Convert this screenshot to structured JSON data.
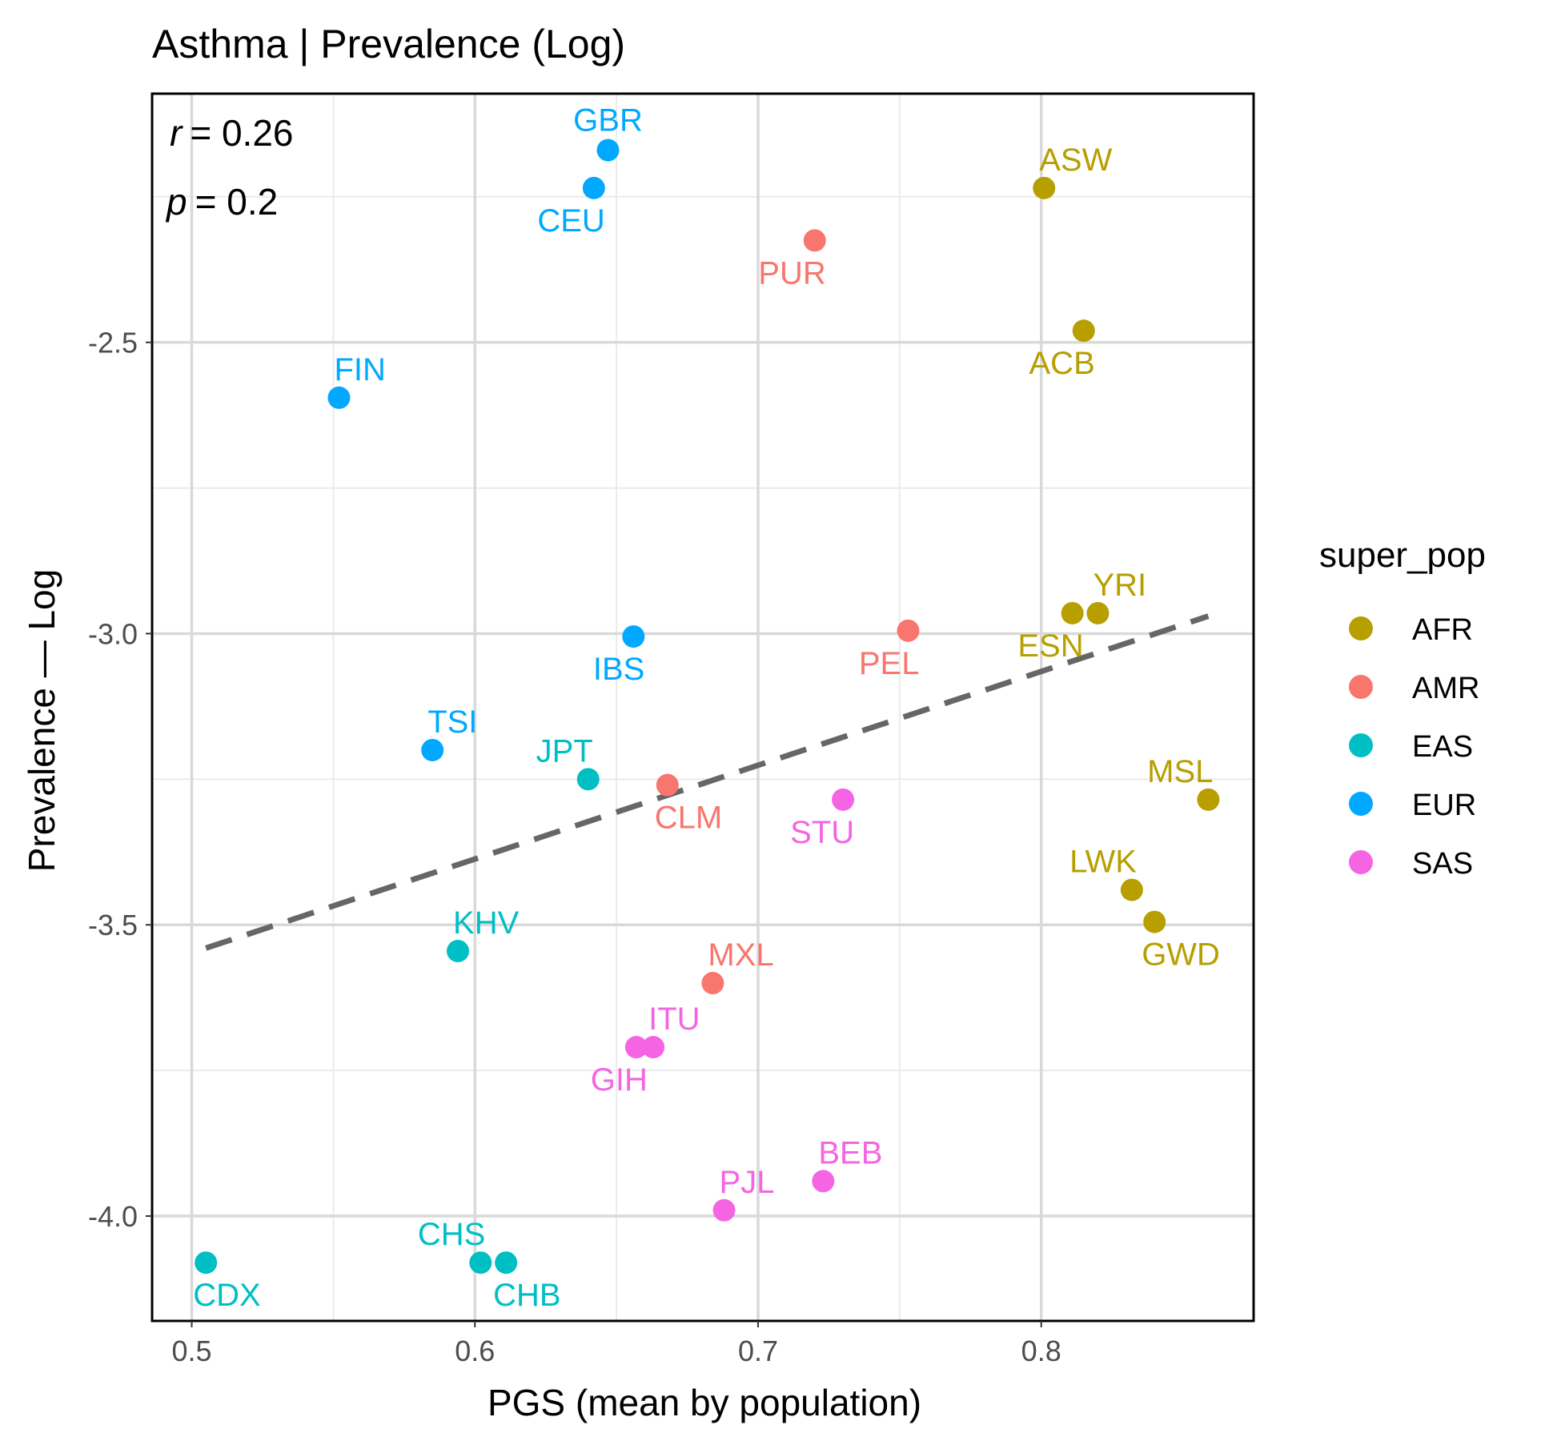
{
  "chart_data": {
    "type": "scatter",
    "title": "Asthma | Prevalence (Log)",
    "xlabel": "PGS (mean by population)",
    "ylabel": "Prevalence — Log",
    "xlim": [
      0.486,
      0.875
    ],
    "ylim": [
      -4.18,
      -2.073
    ],
    "x_ticks": [
      0.5,
      0.6,
      0.7,
      0.8
    ],
    "x_tick_labels": [
      "0.5",
      "0.6",
      "0.7",
      "0.8"
    ],
    "y_ticks": [
      -4.0,
      -3.5,
      -3.0,
      -2.5
    ],
    "y_tick_labels": [
      "-4.0",
      "-3.5",
      "-3.0",
      "-2.5"
    ],
    "grid": true,
    "annotation": {
      "r_symbol": "r",
      "r_value": "= 0.26",
      "p_symbol": "p",
      "p_value": "= 0.2"
    },
    "trend_line": {
      "style": "dashed",
      "color": "#666666",
      "x": [
        0.505,
        0.859
      ],
      "y": [
        -3.54,
        -2.97
      ]
    },
    "legend": {
      "title": "super_pop",
      "placement": "right",
      "entries": [
        {
          "name": "AFR",
          "color": "#B79F00"
        },
        {
          "name": "AMR",
          "color": "#F8766D"
        },
        {
          "name": "EAS",
          "color": "#00BFC4"
        },
        {
          "name": "EUR",
          "color": "#00A9FF"
        },
        {
          "name": "SAS",
          "color": "#F564E3"
        }
      ]
    },
    "points": [
      {
        "label": "GBR",
        "x": 0.647,
        "y": -2.17,
        "group": "EUR",
        "label_pos": "above"
      },
      {
        "label": "CEU",
        "x": 0.642,
        "y": -2.235,
        "group": "EUR",
        "label_pos": "below-left"
      },
      {
        "label": "FIN",
        "x": 0.552,
        "y": -2.595,
        "group": "EUR",
        "label_pos": "above-right"
      },
      {
        "label": "IBS",
        "x": 0.656,
        "y": -3.005,
        "group": "EUR",
        "label_pos": "below-left"
      },
      {
        "label": "TSI",
        "x": 0.585,
        "y": -3.2,
        "group": "EUR",
        "label_pos": "above-right"
      },
      {
        "label": "PUR",
        "x": 0.72,
        "y": -2.325,
        "group": "AMR",
        "label_pos": "below-left"
      },
      {
        "label": "PEL",
        "x": 0.753,
        "y": -2.995,
        "group": "AMR",
        "label_pos": "below-left"
      },
      {
        "label": "CLM",
        "x": 0.668,
        "y": -3.26,
        "group": "AMR",
        "label_pos": "below-right"
      },
      {
        "label": "MXL",
        "x": 0.684,
        "y": -3.6,
        "group": "AMR",
        "label_pos": "above-right"
      },
      {
        "label": "ASW",
        "x": 0.801,
        "y": -2.235,
        "group": "AFR",
        "label_pos": "above-right"
      },
      {
        "label": "ACB",
        "x": 0.815,
        "y": -2.48,
        "group": "AFR",
        "label_pos": "below-left"
      },
      {
        "label": "YRI",
        "x": 0.82,
        "y": -2.965,
        "group": "AFR",
        "label_pos": "above-right"
      },
      {
        "label": "ESN",
        "x": 0.811,
        "y": -2.965,
        "group": "AFR",
        "label_pos": "below-left"
      },
      {
        "label": "MSL",
        "x": 0.859,
        "y": -3.285,
        "group": "AFR",
        "label_pos": "above-left"
      },
      {
        "label": "LWK",
        "x": 0.832,
        "y": -3.44,
        "group": "AFR",
        "label_pos": "above-left"
      },
      {
        "label": "GWD",
        "x": 0.84,
        "y": -3.495,
        "group": "AFR",
        "label_pos": "below-right"
      },
      {
        "label": "JPT",
        "x": 0.64,
        "y": -3.25,
        "group": "EAS",
        "label_pos": "above-left"
      },
      {
        "label": "KHV",
        "x": 0.594,
        "y": -3.545,
        "group": "EAS",
        "label_pos": "above-right"
      },
      {
        "label": "CHS",
        "x": 0.602,
        "y": -4.08,
        "group": "EAS",
        "label_pos": "above-left"
      },
      {
        "label": "CHB",
        "x": 0.611,
        "y": -4.08,
        "group": "EAS",
        "label_pos": "below-right"
      },
      {
        "label": "CDX",
        "x": 0.505,
        "y": -4.08,
        "group": "EAS",
        "label_pos": "below-right"
      },
      {
        "label": "STU",
        "x": 0.73,
        "y": -3.285,
        "group": "SAS",
        "label_pos": "below-left"
      },
      {
        "label": "ITU",
        "x": 0.663,
        "y": -3.71,
        "group": "SAS",
        "label_pos": "above-right"
      },
      {
        "label": "GIH",
        "x": 0.657,
        "y": -3.71,
        "group": "SAS",
        "label_pos": "below-left"
      },
      {
        "label": "BEB",
        "x": 0.723,
        "y": -3.94,
        "group": "SAS",
        "label_pos": "above-right"
      },
      {
        "label": "PJL",
        "x": 0.688,
        "y": -3.99,
        "group": "SAS",
        "label_pos": "above-right"
      }
    ]
  }
}
